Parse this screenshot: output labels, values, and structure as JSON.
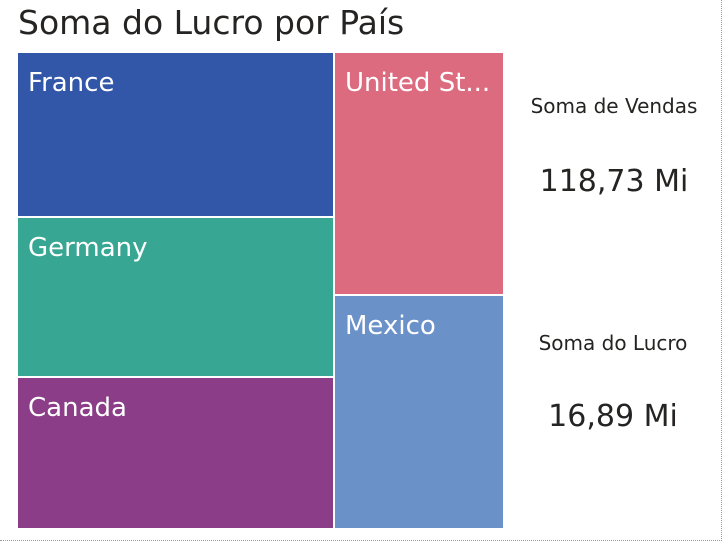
{
  "chart_data": {
    "type": "treemap",
    "title": "Soma do Lucro por País",
    "items": [
      {
        "name": "France",
        "label": "France",
        "color": "#3257A8"
      },
      {
        "name": "Germany",
        "label": "Germany",
        "color": "#37A794"
      },
      {
        "name": "Canada",
        "label": "Canada",
        "color": "#8B3D88"
      },
      {
        "name": "United States of America",
        "label": "United St...",
        "color": "#DD6B7F"
      },
      {
        "name": "Mexico",
        "label": "Mexico",
        "color": "#6B91C9"
      }
    ]
  },
  "cards": [
    {
      "label": "Soma de Vendas",
      "value": "118,73 Mi"
    },
    {
      "label": "Soma do Lucro",
      "value": "16,89 Mi"
    }
  ]
}
